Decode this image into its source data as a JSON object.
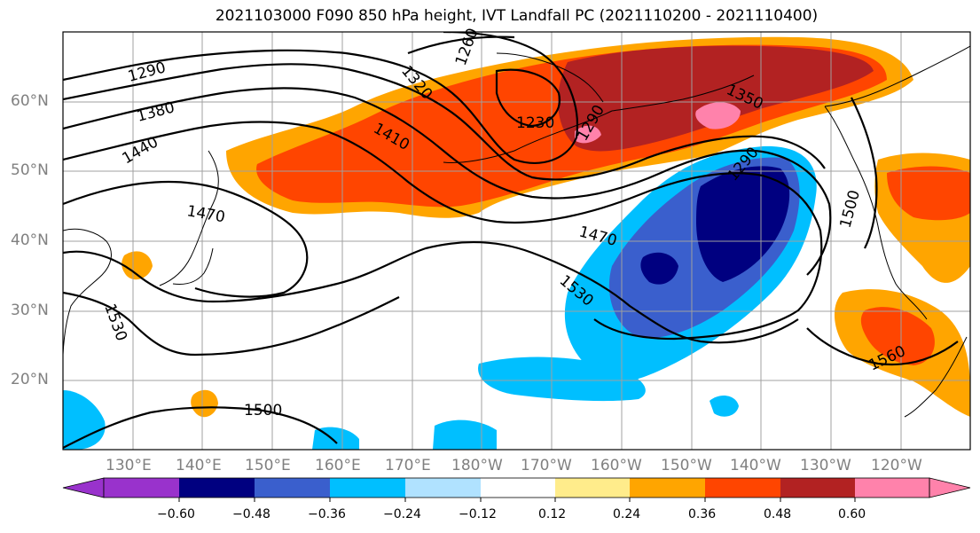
{
  "title": "2021103000 F090 850 hPa height, IVT Landfall PC (2021110200 - 2021110400)",
  "map": {
    "lat_labels": [
      "60°N",
      "50°N",
      "40°N",
      "30°N",
      "20°N"
    ],
    "lon_labels": [
      "130°E",
      "140°E",
      "150°E",
      "160°E",
      "170°E",
      "180°W",
      "170°W",
      "160°W",
      "150°W",
      "140°W",
      "130°W",
      "120°W"
    ],
    "contour_labels": [
      "1290",
      "1320",
      "1260",
      "1380",
      "1230",
      "1440",
      "1410",
      "1290",
      "1350",
      "1290",
      "1470",
      "1470",
      "1500",
      "1530",
      "1530",
      "1560",
      "1500"
    ]
  },
  "colorbar": {
    "tick_labels": [
      "−0.60",
      "−0.48",
      "−0.36",
      "−0.24",
      "−0.12",
      "0.12",
      "0.24",
      "0.36",
      "0.48",
      "0.60"
    ],
    "colors": [
      "#9932cc",
      "#000080",
      "#3a5fcd",
      "#00bfff",
      "#b0e2ff",
      "#ffffff",
      "#ffec8b",
      "#ffa500",
      "#ff4500",
      "#b22222",
      "#ff82ab"
    ]
  }
}
